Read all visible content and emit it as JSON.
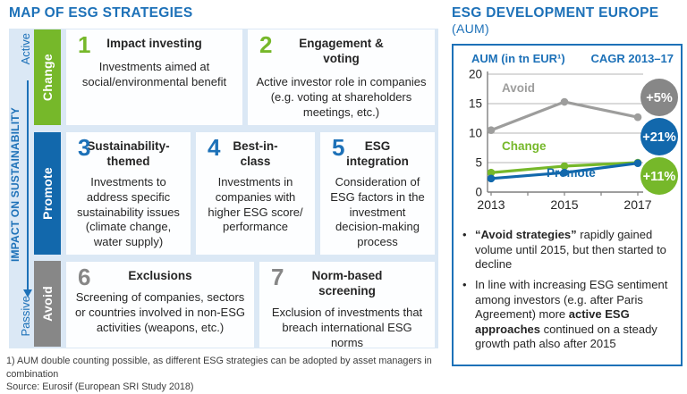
{
  "colors": {
    "accent_blue": "#1d71b8",
    "bar_blue": "#1268ac",
    "green": "#76b82a",
    "gray": "#878787",
    "line_gray": "#9d9d9c",
    "panel_bg": "#dbe8f5"
  },
  "left": {
    "title": "MAP OF ESG STRATEGIES",
    "axis": {
      "title": "IMPACT ON SUSTAINABILITY",
      "top_label": "Active",
      "bottom_label": "Passive"
    },
    "groups": [
      {
        "label": "Change",
        "color": "#76b82a"
      },
      {
        "label": "Promote",
        "color": "#1268ac"
      },
      {
        "label": "Avoid",
        "color": "#878787"
      }
    ],
    "cards": [
      {
        "number": "1",
        "title": "Impact investing",
        "body": "Investments aimed at social/environmental benefit",
        "group": "Change"
      },
      {
        "number": "2",
        "title": "Engagement &\nvoting",
        "body": "Active investor role in companies (e.g. voting at shareholders meetings, etc.)",
        "group": "Change"
      },
      {
        "number": "3",
        "title": "Sustainability-\nthemed",
        "body": "Investments to address specific sustainability issues (climate change, water supply)",
        "group": "Promote"
      },
      {
        "number": "4",
        "title": "Best-in-\nclass",
        "body": "Investments in companies with higher ESG score/ performance",
        "group": "Promote"
      },
      {
        "number": "5",
        "title": "ESG\nintegration",
        "body": "Consideration of ESG factors in the investment decision-making process",
        "group": "Promote"
      },
      {
        "number": "6",
        "title": "Exclusions",
        "body": "Screening of companies, sectors or countries involved in non-ESG activities (weapons, etc.)",
        "group": "Avoid"
      },
      {
        "number": "7",
        "title": "Norm-based\nscreening",
        "body": "Exclusion of investments that breach international ESG norms",
        "group": "Avoid"
      }
    ],
    "footnote_line1": "1) AUM double counting possible, as different ESG strategies can be adopted by asset managers in combination",
    "footnote_line2": "Source: Eurosif (European SRI Study 2018)"
  },
  "right": {
    "title": "ESG DEVELOPMENT EUROPE",
    "title_suffix": "(AUM)",
    "chart_header_left": "AUM (in tn EUR¹)",
    "chart_header_right": "CAGR 2013–17",
    "bullets": [
      {
        "segments": [
          {
            "text": "“Avoid strategies”",
            "bold": true
          },
          {
            "text": " rapidly gained volume until 2015, but then started to decline",
            "bold": false
          }
        ]
      },
      {
        "segments": [
          {
            "text": "In line with increasing ESG sentiment among investors (e.g. after Paris Agreement) more ",
            "bold": false
          },
          {
            "text": "active ESG approaches",
            "bold": true
          },
          {
            "text": " continued on a steady growth path also after 2015",
            "bold": false
          }
        ]
      }
    ]
  },
  "chart_data": {
    "type": "line",
    "title": "ESG DEVELOPMENT EUROPE (AUM)",
    "ylabel": "AUM (in tn EUR¹)",
    "x": [
      2013,
      2015,
      2017
    ],
    "xlim": [
      2013,
      2017
    ],
    "ylim": [
      0,
      20
    ],
    "yticks": [
      0,
      5,
      10,
      15,
      20
    ],
    "xticks_minor": [
      2014,
      2016
    ],
    "grid": true,
    "legend_position": "inline-labels",
    "series": [
      {
        "name": "Avoid",
        "values": [
          10.5,
          15.3,
          12.7
        ],
        "color": "#9d9d9c",
        "cagr": "+5%"
      },
      {
        "name": "Change",
        "values": [
          3.3,
          4.4,
          5.0
        ],
        "color": "#76b82a",
        "cagr": "+11%"
      },
      {
        "name": "Promote",
        "values": [
          2.3,
          3.3,
          4.9
        ],
        "color": "#1268ac",
        "cagr": "+21%"
      }
    ],
    "badges": [
      {
        "label": "+5%",
        "color": "#878787"
      },
      {
        "label": "+21%",
        "color": "#1268ac"
      },
      {
        "label": "+11%",
        "color": "#76b82a"
      }
    ]
  }
}
